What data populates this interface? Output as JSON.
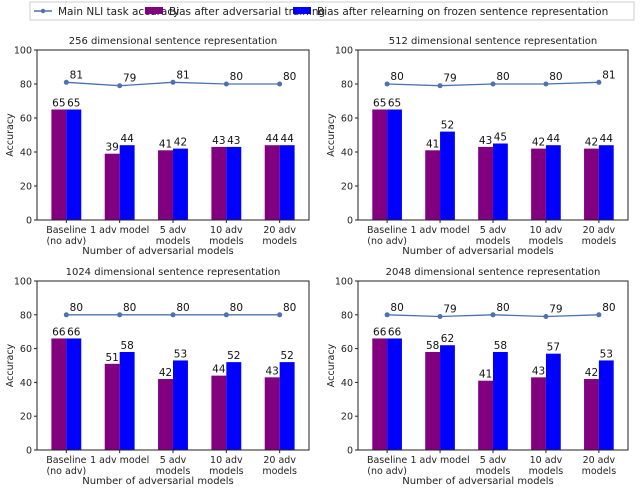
{
  "legend": {
    "placement": "top",
    "items": [
      {
        "label": "Main NLI task accuracy",
        "color": "#4c72b0",
        "kind": "line"
      },
      {
        "label": "Bias after adversarial training",
        "color": "#800080",
        "kind": "bar"
      },
      {
        "label": "Bias after relearning on frozen sentence representation",
        "color": "#0000ff",
        "kind": "bar"
      }
    ]
  },
  "chart_data": [
    {
      "type": "bar",
      "title": "256 dimensional sentence representation",
      "xlabel": "Number of adversarial models",
      "ylabel": "Accuracy",
      "ylim": [
        0,
        100
      ],
      "yticks": [
        0,
        20,
        40,
        60,
        80,
        100
      ],
      "categories": [
        "Baseline\n(no adv)",
        "1 adv model",
        "5 adv\nmodels",
        "10 adv\nmodels",
        "20 adv\nmodels"
      ],
      "line": [
        81,
        79,
        81,
        80,
        80
      ],
      "purple": [
        65,
        39,
        41,
        43,
        44
      ],
      "blue": [
        65,
        44,
        42,
        43,
        44
      ]
    },
    {
      "type": "bar",
      "title": "512 dimensional sentence representation",
      "xlabel": "Number of adversarial models",
      "ylabel": "Accuracy",
      "ylim": [
        0,
        100
      ],
      "yticks": [
        0,
        20,
        40,
        60,
        80,
        100
      ],
      "categories": [
        "Baseline\n(no adv)",
        "1 adv model",
        "5 adv\nmodels",
        "10 adv\nmodels",
        "20 adv\nmodels"
      ],
      "line": [
        80,
        79,
        80,
        80,
        81
      ],
      "purple": [
        65,
        41,
        43,
        42,
        42
      ],
      "blue": [
        65,
        52,
        45,
        44,
        44
      ]
    },
    {
      "type": "bar",
      "title": "1024 dimensional sentence representation",
      "xlabel": "Number of adversarial models",
      "ylabel": "Accuracy",
      "ylim": [
        0,
        100
      ],
      "yticks": [
        0,
        20,
        40,
        60,
        80,
        100
      ],
      "categories": [
        "Baseline\n(no adv)",
        "1 adv model",
        "5 adv\nmodels",
        "10 adv\nmodels",
        "20 adv\nmodels"
      ],
      "line": [
        80,
        80,
        80,
        80,
        80
      ],
      "purple": [
        66,
        51,
        42,
        44,
        43
      ],
      "blue": [
        66,
        58,
        53,
        52,
        52
      ]
    },
    {
      "type": "bar",
      "title": "2048 dimensional sentence representation",
      "xlabel": "Number of adversarial models",
      "ylabel": "Accuracy",
      "ylim": [
        0,
        100
      ],
      "yticks": [
        0,
        20,
        40,
        60,
        80,
        100
      ],
      "categories": [
        "Baseline\n(no adv)",
        "1 adv model",
        "5 adv\nmodels",
        "10 adv\nmodels",
        "20 adv\nmodels"
      ],
      "line": [
        80,
        79,
        80,
        79,
        80
      ],
      "purple": [
        66,
        58,
        41,
        43,
        42
      ],
      "blue": [
        66,
        62,
        58,
        57,
        53
      ]
    }
  ]
}
